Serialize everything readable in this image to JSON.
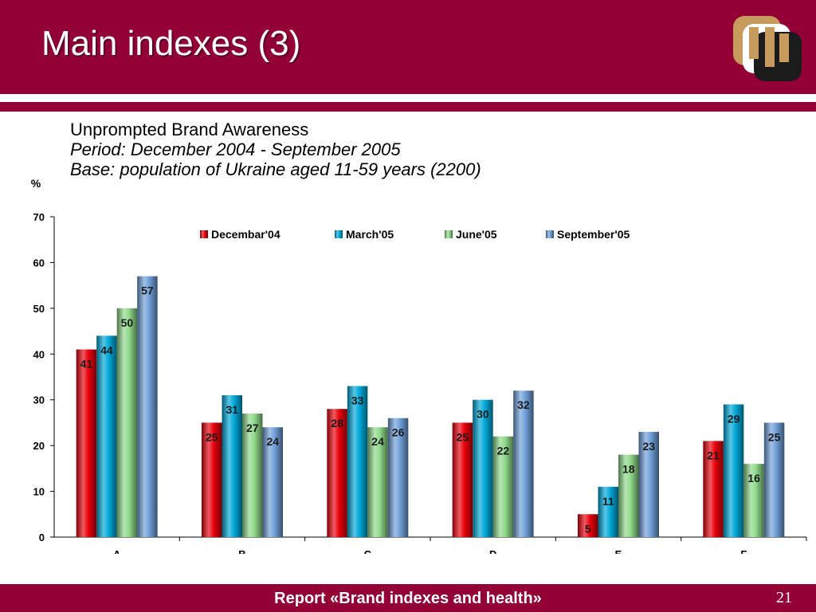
{
  "header": {
    "title": "Main indexes (3)"
  },
  "subtitle": {
    "line1": "Unprompted Brand Awareness",
    "line2": "Period: December 2004 - September 2005",
    "line3": "Base: population of Ukraine aged 11-59 years (2200)"
  },
  "colors": {
    "brand": "#930033",
    "series": [
      "#e8000b",
      "#00a8d8",
      "#8fd98a",
      "#6f9fd8"
    ]
  },
  "chart_data": {
    "type": "bar",
    "ylabel": "%",
    "ylim": [
      0,
      70
    ],
    "yticks": [
      0,
      10,
      20,
      30,
      40,
      50,
      60,
      70
    ],
    "categories": [
      "A",
      "B",
      "C",
      "D",
      "E",
      "F"
    ],
    "series": [
      {
        "name": "Decembar'04",
        "values": [
          41,
          25,
          28,
          25,
          5,
          21
        ]
      },
      {
        "name": "March'05",
        "values": [
          44,
          31,
          33,
          30,
          11,
          29
        ]
      },
      {
        "name": "June'05",
        "values": [
          50,
          27,
          24,
          22,
          18,
          16
        ]
      },
      {
        "name": "September'05",
        "values": [
          57,
          24,
          26,
          32,
          23,
          25
        ]
      }
    ],
    "legend": "top",
    "grid": false
  },
  "footer": {
    "text": "Report «Brand indexes and health»",
    "page": "21"
  }
}
